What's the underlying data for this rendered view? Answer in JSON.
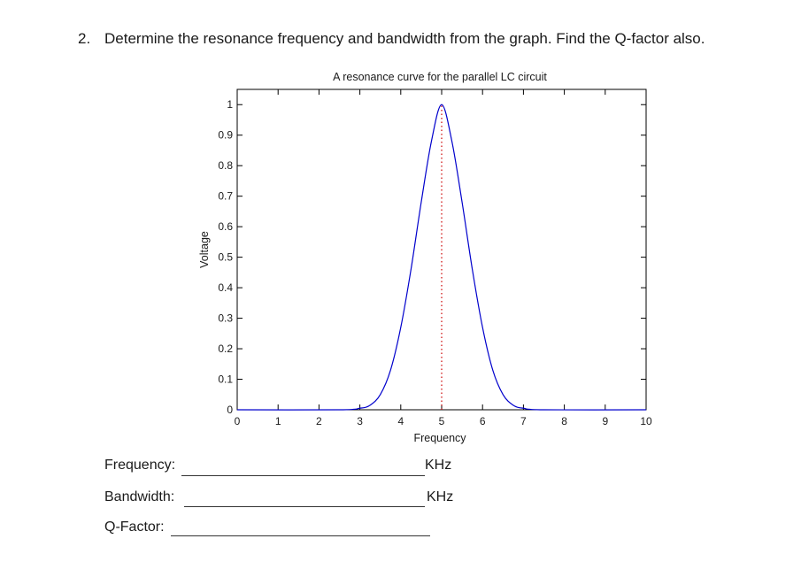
{
  "question": {
    "number": "2.",
    "text": "Determine the resonance frequency and bandwidth from the graph. Find the Q-factor also."
  },
  "chart_data": {
    "type": "line",
    "title": "A resonance curve for the parallel LC circuit",
    "xlabel": "Frequency",
    "ylabel": "Voltage",
    "xlim": [
      0,
      10
    ],
    "ylim": [
      0,
      1.05
    ],
    "xticks": [
      "0",
      "1",
      "2",
      "3",
      "4",
      "5",
      "6",
      "7",
      "8",
      "9",
      "10"
    ],
    "yticks": [
      "0",
      "0.1",
      "0.2",
      "0.3",
      "0.4",
      "0.5",
      "0.6",
      "0.7",
      "0.8",
      "0.9",
      "1"
    ],
    "line_color": "#0000cc",
    "marker_line": {
      "x": 5,
      "style": "dotted",
      "color": "#cc0000"
    },
    "series": [
      {
        "x": [
          0,
          2.5,
          3.0,
          3.25,
          3.5,
          3.75,
          4.0,
          4.25,
          4.5,
          4.75,
          5.0,
          5.25,
          5.5,
          5.75,
          6.0,
          6.25,
          6.5,
          6.75,
          7.0,
          7.5,
          10
        ],
        "values": [
          0,
          0,
          0.005,
          0.015,
          0.05,
          0.13,
          0.27,
          0.46,
          0.68,
          0.88,
          1.0,
          0.88,
          0.68,
          0.46,
          0.27,
          0.13,
          0.05,
          0.015,
          0.005,
          0,
          0
        ]
      }
    ]
  },
  "answers": {
    "frequency_label": "Frequency:",
    "frequency_unit": "KHz",
    "bandwidth_label": "Bandwidth:",
    "bandwidth_unit": "KHz",
    "qfactor_label": "Q-Factor:"
  }
}
